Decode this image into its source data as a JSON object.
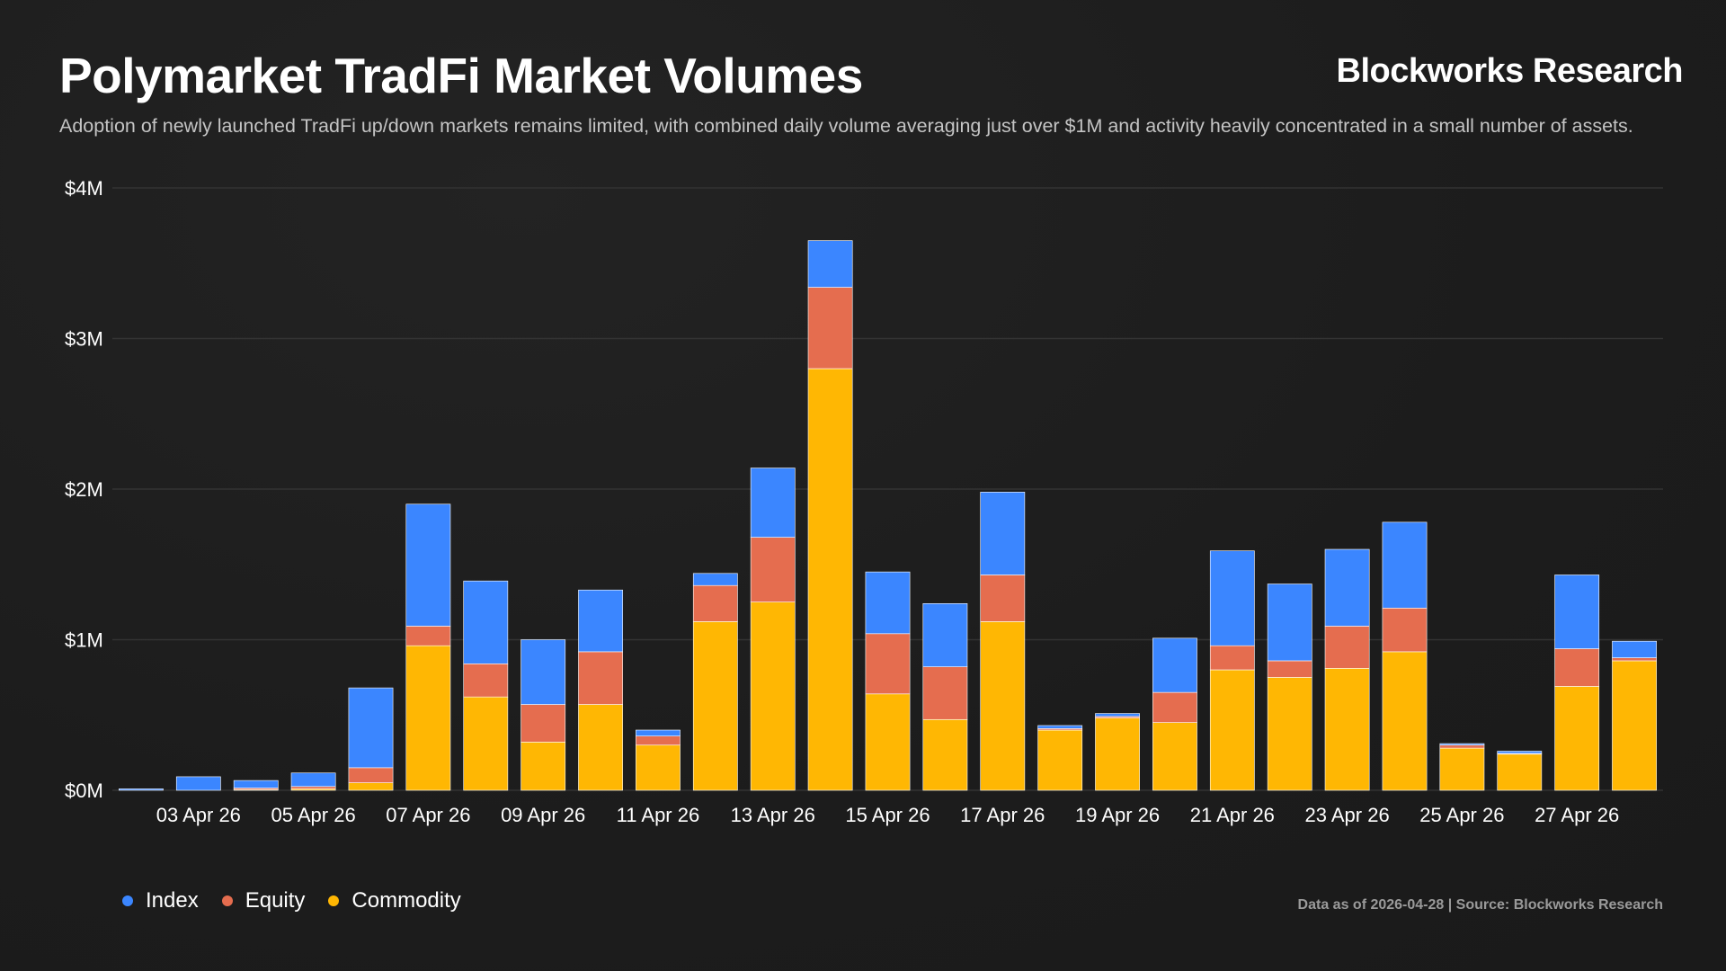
{
  "header": {
    "title": "Polymarket TradFi Market Volumes",
    "brand": "Blockworks Research",
    "subtitle": "Adoption of newly launched TradFi up/down markets remains limited, with combined daily volume averaging just over $1M and activity heavily concentrated in a small number of assets."
  },
  "footer": {
    "source": "Data as of 2026-04-28 | Source: Blockworks Research"
  },
  "colors": {
    "Index": "#3b86ff",
    "Equity": "#e56d4f",
    "Commodity": "#ffb703",
    "grid": "#333333",
    "axis_text": "#ffffff"
  },
  "chart_data": {
    "type": "bar",
    "stacked": true,
    "title": "Polymarket TradFi Market Volumes",
    "ylim": [
      0,
      4000000
    ],
    "y_ticks": [
      {
        "value": 0,
        "label": "$0M"
      },
      {
        "value": 1000000,
        "label": "$1M"
      },
      {
        "value": 2000000,
        "label": "$2M"
      },
      {
        "value": 3000000,
        "label": "$3M"
      },
      {
        "value": 4000000,
        "label": "$4M"
      }
    ],
    "grid": true,
    "legend": "bottom-left",
    "categories": [
      "02 Apr 26",
      "03 Apr 26",
      "04 Apr 26",
      "05 Apr 26",
      "06 Apr 26",
      "07 Apr 26",
      "08 Apr 26",
      "09 Apr 26",
      "10 Apr 26",
      "11 Apr 26",
      "12 Apr 26",
      "13 Apr 26",
      "14 Apr 26",
      "15 Apr 26",
      "16 Apr 26",
      "17 Apr 26",
      "18 Apr 26",
      "19 Apr 26",
      "20 Apr 26",
      "21 Apr 26",
      "22 Apr 26",
      "23 Apr 26",
      "24 Apr 26",
      "25 Apr 26",
      "26 Apr 26",
      "27 Apr 26",
      "28 Apr 26"
    ],
    "x_tick_labels": [
      "03 Apr 26",
      "05 Apr 26",
      "07 Apr 26",
      "09 Apr 26",
      "11 Apr 26",
      "13 Apr 26",
      "15 Apr 26",
      "17 Apr 26",
      "19 Apr 26",
      "21 Apr 26",
      "23 Apr 26",
      "25 Apr 26",
      "27 Apr 26"
    ],
    "series": [
      {
        "name": "Commodity",
        "values": [
          0,
          0,
          5000,
          10000,
          50000,
          960000,
          620000,
          320000,
          570000,
          300000,
          1120000,
          1250000,
          2800000,
          640000,
          470000,
          1120000,
          400000,
          480000,
          450000,
          800000,
          750000,
          810000,
          920000,
          280000,
          240000,
          690000,
          860000
        ]
      },
      {
        "name": "Equity",
        "values": [
          0,
          0,
          10000,
          15000,
          100000,
          130000,
          220000,
          250000,
          350000,
          60000,
          240000,
          430000,
          540000,
          400000,
          350000,
          310000,
          10000,
          10000,
          200000,
          160000,
          110000,
          280000,
          290000,
          20000,
          5000,
          250000,
          20000
        ]
      },
      {
        "name": "Index",
        "values": [
          10000,
          90000,
          50000,
          90000,
          530000,
          810000,
          550000,
          430000,
          410000,
          40000,
          80000,
          460000,
          310000,
          410000,
          420000,
          550000,
          20000,
          20000,
          360000,
          630000,
          510000,
          510000,
          570000,
          10000,
          15000,
          490000,
          110000
        ]
      }
    ]
  }
}
